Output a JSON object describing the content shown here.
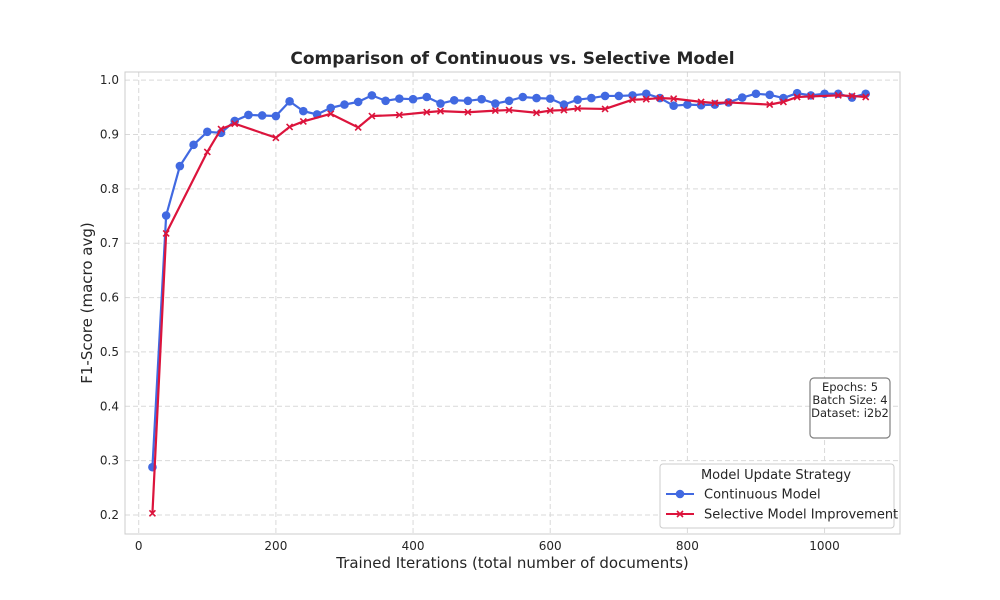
{
  "chart_data": {
    "type": "line",
    "title": "Comparison of Continuous vs. Selective Model",
    "xlabel": "Trained Iterations (total number of documents)",
    "ylabel": "F1-Score (macro avg)",
    "xlim": [
      -20,
      1110
    ],
    "ylim": [
      0.165,
      1.015
    ],
    "xticks": [
      0,
      200,
      400,
      600,
      800,
      1000
    ],
    "yticks": [
      0.2,
      0.3,
      0.4,
      0.5,
      0.6,
      0.7,
      0.8,
      0.9,
      1.0
    ],
    "xtick_labels": [
      "0",
      "200",
      "400",
      "600",
      "800",
      "1000"
    ],
    "ytick_labels": [
      "0.2",
      "0.3",
      "0.4",
      "0.5",
      "0.6",
      "0.7",
      "0.8",
      "0.9",
      "1.0"
    ],
    "grid": true,
    "legend": {
      "title": "Model Update Strategy",
      "position": "lower-right"
    },
    "annotation": {
      "lines": [
        "Epochs: 5",
        "Batch Size: 4",
        "Dataset: i2b2"
      ]
    },
    "series": [
      {
        "name": "Continuous Model",
        "color": "#4169e1",
        "marker": "circle",
        "x": [
          20,
          40,
          60,
          80,
          100,
          120,
          140,
          160,
          180,
          200,
          220,
          240,
          260,
          280,
          300,
          320,
          340,
          360,
          380,
          400,
          420,
          440,
          460,
          480,
          500,
          520,
          540,
          560,
          580,
          600,
          620,
          640,
          660,
          680,
          700,
          720,
          740,
          760,
          780,
          800,
          820,
          840,
          860,
          880,
          900,
          920,
          940,
          960,
          980,
          1000,
          1020,
          1040,
          1060
        ],
        "y": [
          0.288,
          0.751,
          0.842,
          0.881,
          0.905,
          0.903,
          0.925,
          0.936,
          0.935,
          0.934,
          0.961,
          0.943,
          0.937,
          0.949,
          0.955,
          0.96,
          0.972,
          0.962,
          0.966,
          0.965,
          0.969,
          0.957,
          0.963,
          0.962,
          0.965,
          0.957,
          0.962,
          0.969,
          0.967,
          0.966,
          0.955,
          0.964,
          0.967,
          0.971,
          0.971,
          0.972,
          0.975,
          0.967,
          0.953,
          0.955,
          0.954,
          0.955,
          0.959,
          0.968,
          0.975,
          0.973,
          0.967,
          0.976,
          0.972,
          0.975,
          0.975,
          0.968,
          0.975
        ]
      },
      {
        "name": "Selective Model Improvement",
        "color": "#dc143c",
        "marker": "x",
        "x": [
          20,
          40,
          100,
          120,
          140,
          200,
          220,
          240,
          280,
          320,
          340,
          380,
          420,
          440,
          480,
          520,
          540,
          580,
          600,
          620,
          640,
          680,
          720,
          740,
          760,
          780,
          820,
          840,
          860,
          920,
          940,
          960,
          980,
          1020,
          1040,
          1060
        ],
        "y": [
          0.203,
          0.718,
          0.868,
          0.91,
          0.92,
          0.894,
          0.914,
          0.924,
          0.938,
          0.913,
          0.934,
          0.936,
          0.941,
          0.943,
          0.941,
          0.944,
          0.945,
          0.94,
          0.944,
          0.945,
          0.948,
          0.947,
          0.964,
          0.965,
          0.967,
          0.966,
          0.96,
          0.958,
          0.959,
          0.955,
          0.96,
          0.969,
          0.97,
          0.972,
          0.971,
          0.969
        ]
      }
    ]
  }
}
